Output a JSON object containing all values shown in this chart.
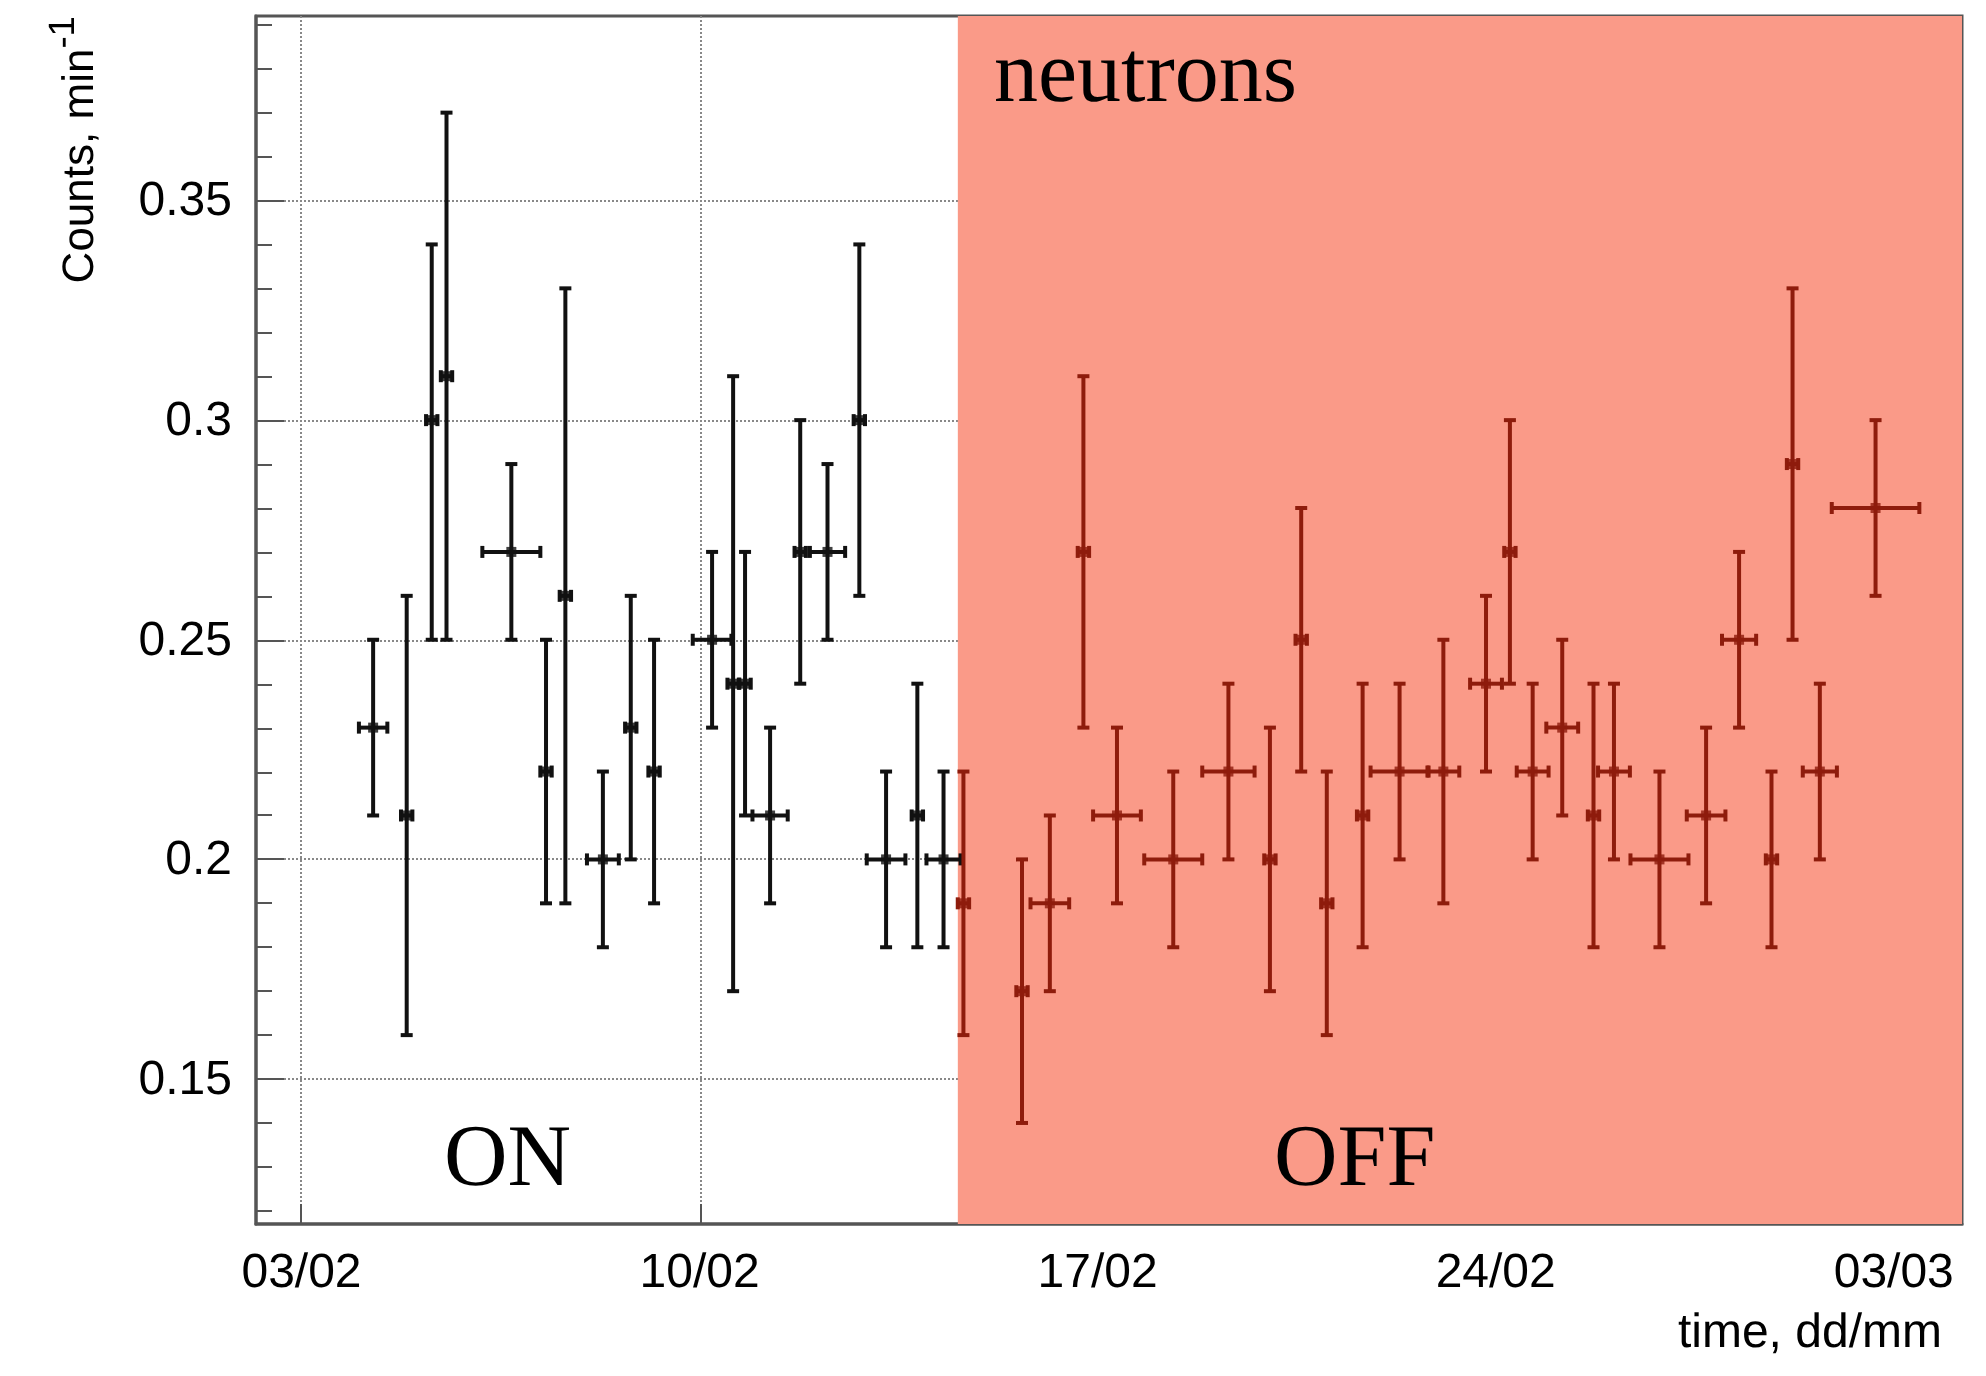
{
  "chart_data": {
    "type": "scatter",
    "ylabel": "Counts, min$^{-1}$",
    "xlabel": "time, dd/mm",
    "annotations": [
      "neutrons",
      "ON",
      "OFF"
    ],
    "xlim": [
      "--02-02T04:48",
      "--03-04T04:48"
    ],
    "ylim": [
      0.117,
      0.392
    ],
    "xticks": [
      {
        "value": "--02-03",
        "label": "03/02"
      },
      {
        "value": "--02-10",
        "label": "10/02"
      },
      {
        "value": "--02-17",
        "label": "17/02"
      },
      {
        "value": "--02-24",
        "label": "24/02"
      },
      {
        "value": "--03-03",
        "label": "03/03"
      }
    ],
    "yticks": [
      0.15,
      0.2,
      0.25,
      0.3,
      0.35
    ],
    "grid": true,
    "marker": "square",
    "bands": [
      {
        "axis": "x",
        "from": "--02-14T13:00",
        "to": "--03-04T04:48",
        "color": "#fa9a88"
      }
    ],
    "series": [
      {
        "color": "#111111",
        "x": [
          "--02-04T06:14",
          "--02-04T20:24",
          "--02-05T06:58",
          "--02-05T13:12",
          "--02-06T16:34",
          "--02-07T07:12",
          "--02-07T15:22",
          "--02-08T07:12",
          "--02-08T18:58",
          "--02-09T04:48",
          "--02-10T05:17",
          "--02-10T14:10",
          "--02-10T19:12",
          "--02-11T05:46",
          "--02-11T18:29",
          "--02-12T06:00",
          "--02-12T19:26",
          "--02-13T06:43",
          "--02-13T19:55",
          "--02-14T06:58"
        ],
        "values": [
          0.23,
          0.21,
          0.3,
          0.31,
          0.27,
          0.22,
          0.26,
          0.2,
          0.23,
          0.22,
          0.25,
          0.24,
          0.24,
          0.21,
          0.27,
          0.27,
          0.3,
          0.2,
          0.21,
          0.2
        ],
        "errors": [
          [
            0.21,
            0.25
          ],
          [
            0.16,
            0.26
          ],
          [
            0.25,
            0.34
          ],
          [
            0.25,
            0.37
          ],
          [
            0.25,
            0.29
          ],
          [
            0.19,
            0.25
          ],
          [
            0.19,
            0.33
          ],
          [
            0.18,
            0.22
          ],
          [
            0.2,
            0.26
          ],
          [
            0.19,
            0.25
          ],
          [
            0.23,
            0.27
          ],
          [
            0.17,
            0.31
          ],
          [
            0.21,
            0.27
          ],
          [
            0.19,
            0.23
          ],
          [
            0.24,
            0.3
          ],
          [
            0.25,
            0.29
          ],
          [
            0.26,
            0.34
          ],
          [
            0.18,
            0.22
          ],
          [
            0.18,
            0.24
          ],
          [
            0.18,
            0.22
          ]
        ],
        "xerrors": [
          0.25,
          0.1,
          0.1,
          0.1,
          0.51,
          0.1,
          0.1,
          0.28,
          0.1,
          0.1,
          0.34,
          0.1,
          0.1,
          0.31,
          0.1,
          0.31,
          0.1,
          0.34,
          0.1,
          0.3
        ]
      },
      {
        "color": "#8e1c0c",
        "x": [
          "--02-14T15:22",
          "--02-15T16:05",
          "--02-16T03:50",
          "--02-16T18:00",
          "--02-17T08:10",
          "--02-18T07:55",
          "--02-19T07:12",
          "--02-20T00:43",
          "--02-20T13:55",
          "--02-21T00:43",
          "--02-21T15:50",
          "--02-22T07:26",
          "--02-23T01:55",
          "--02-23T19:55",
          "--02-24T06:00",
          "--02-24T15:36",
          "--02-25T04:05",
          "--02-25T17:17",
          "--02-26T01:55",
          "--02-26T21:07",
          "--02-27T16:48",
          "--02-28T06:43",
          "--02-28T20:24",
          "--03-01T05:17",
          "--03-01T16:48",
          "--03-02T16:19"
        ],
        "values": [
          0.19,
          0.17,
          0.19,
          0.27,
          0.21,
          0.2,
          0.22,
          0.2,
          0.25,
          0.19,
          0.21,
          0.22,
          0.22,
          0.24,
          0.27,
          0.22,
          0.23,
          0.21,
          0.22,
          0.2,
          0.21,
          0.25,
          0.2,
          0.29,
          0.22,
          0.28
        ],
        "errors": [
          [
            0.16,
            0.22
          ],
          [
            0.14,
            0.2
          ],
          [
            0.17,
            0.21
          ],
          [
            0.23,
            0.31
          ],
          [
            0.19,
            0.23
          ],
          [
            0.18,
            0.22
          ],
          [
            0.2,
            0.24
          ],
          [
            0.17,
            0.23
          ],
          [
            0.22,
            0.28
          ],
          [
            0.16,
            0.22
          ],
          [
            0.18,
            0.24
          ],
          [
            0.2,
            0.24
          ],
          [
            0.19,
            0.25
          ],
          [
            0.22,
            0.26
          ],
          [
            0.24,
            0.3
          ],
          [
            0.2,
            0.24
          ],
          [
            0.21,
            0.25
          ],
          [
            0.18,
            0.24
          ],
          [
            0.2,
            0.24
          ],
          [
            0.18,
            0.22
          ],
          [
            0.19,
            0.23
          ],
          [
            0.23,
            0.27
          ],
          [
            0.18,
            0.22
          ],
          [
            0.25,
            0.33
          ],
          [
            0.2,
            0.24
          ],
          [
            0.26,
            0.3
          ]
        ],
        "xerrors": [
          0.1,
          0.1,
          0.34,
          0.1,
          0.42,
          0.51,
          0.46,
          0.1,
          0.1,
          0.1,
          0.1,
          0.51,
          0.28,
          0.28,
          0.1,
          0.28,
          0.28,
          0.1,
          0.28,
          0.51,
          0.34,
          0.3,
          0.1,
          0.1,
          0.3,
          0.77
        ]
      }
    ]
  }
}
